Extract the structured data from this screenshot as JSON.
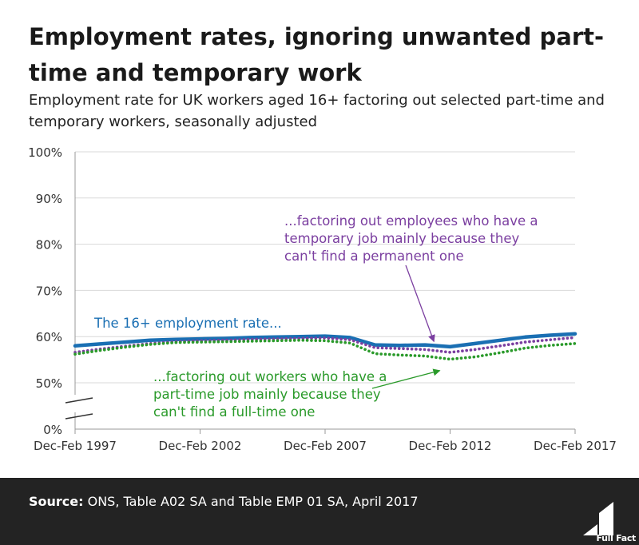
{
  "header": {
    "title": "Employment rates, ignoring unwanted part-time and temporary work",
    "subtitle": "Employment rate for UK workers aged 16+ factoring out selected part-time and temporary workers, seasonally adjusted"
  },
  "chart_data": {
    "type": "line",
    "xlim": [
      1997,
      2017
    ],
    "ylim": [
      0,
      100
    ],
    "x_tick_labels": [
      "Dec-Feb 1997",
      "Dec-Feb 2002",
      "Dec-Feb 2007",
      "Dec-Feb 2012",
      "Dec-Feb 2017"
    ],
    "x_tick_values": [
      1997,
      2002,
      2007,
      2012,
      2017
    ],
    "y_tick_labels": [
      "0%",
      "50%",
      "60%",
      "70%",
      "80%",
      "90%",
      "100%"
    ],
    "y_tick_values": [
      0,
      50,
      60,
      70,
      80,
      90,
      100
    ],
    "axis_break": "between 0% and 50%",
    "grid": true,
    "series": [
      {
        "color": "#1a6fb3",
        "style": "solid",
        "x": [
          1997,
          1998,
          1999,
          2000,
          2001,
          2002,
          2003,
          2004,
          2005,
          2006,
          2007,
          2008,
          2009,
          2010,
          2011,
          2012,
          2013,
          2014,
          2015,
          2016,
          2017
        ],
        "values": [
          58.0,
          58.4,
          58.8,
          59.2,
          59.4,
          59.5,
          59.6,
          59.8,
          59.9,
          60.0,
          60.1,
          59.8,
          58.2,
          58.1,
          58.2,
          57.8,
          58.5,
          59.2,
          59.9,
          60.3,
          60.6
        ]
      },
      {
        "color": "#7b3fa0",
        "style": "dotted",
        "x": [
          1997,
          1998,
          1999,
          2000,
          2001,
          2002,
          2003,
          2004,
          2005,
          2006,
          2007,
          2008,
          2009,
          2010,
          2011,
          2012,
          2013,
          2014,
          2015,
          2016,
          2017
        ],
        "values": [
          56.6,
          57.3,
          57.9,
          58.5,
          58.9,
          59.1,
          59.2,
          59.4,
          59.5,
          59.6,
          59.7,
          59.3,
          57.6,
          57.4,
          57.2,
          56.6,
          57.2,
          58.0,
          58.8,
          59.3,
          59.8
        ]
      },
      {
        "color": "#2a9a2a",
        "style": "dotted",
        "x": [
          1997,
          1998,
          1999,
          2000,
          2001,
          2002,
          2003,
          2004,
          2005,
          2006,
          2007,
          2008,
          2009,
          2010,
          2011,
          2012,
          2013,
          2014,
          2015,
          2016,
          2017
        ],
        "values": [
          56.2,
          57.0,
          57.7,
          58.3,
          58.7,
          58.8,
          58.9,
          59.0,
          59.1,
          59.2,
          59.1,
          58.6,
          56.3,
          56.0,
          55.8,
          55.1,
          55.6,
          56.5,
          57.5,
          58.1,
          58.5
        ]
      }
    ],
    "annotations": [
      {
        "lines": [
          "The 16+ employment rate..."
        ],
        "color": "#1a6fb3"
      },
      {
        "lines": [
          "...factoring out employees who have a",
          "temporary job mainly because they",
          "can't find a permanent one"
        ],
        "color": "#7b3fa0",
        "points_to": [
          2011.8,
          57.2
        ]
      },
      {
        "lines": [
          "...factoring out workers who have a",
          "part-time job mainly because they",
          "can't find a full-time one"
        ],
        "color": "#2a9a2a",
        "points_to": [
          2012.1,
          55.4
        ]
      }
    ]
  },
  "footer": {
    "source_label": "Source:",
    "source_text": " ONS, Table A02 SA and Table EMP 01 SA, April 2017",
    "logo_text": "Full Fact"
  }
}
